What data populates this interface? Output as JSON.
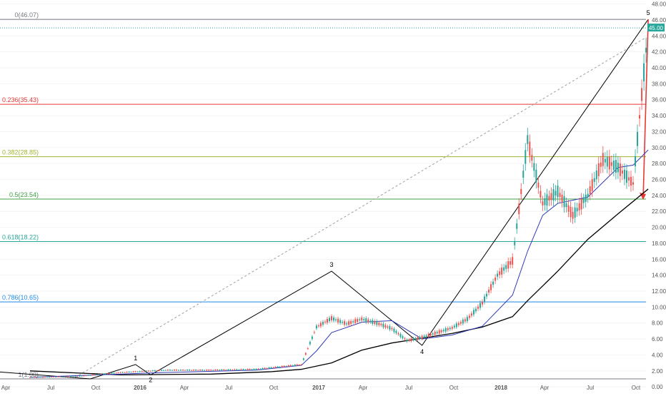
{
  "chart_data": {
    "type": "line",
    "x_tick_labels": [
      "Apr",
      "Jul",
      "Oct",
      "2016",
      "Apr",
      "Jul",
      "Oct",
      "2017",
      "Apr",
      "Jul",
      "Oct",
      "2018",
      "Apr",
      "Jul",
      "Oct"
    ],
    "y_ticks": [
      "0.00",
      "2.00",
      "4.00",
      "6.00",
      "8.00",
      "10.00",
      "12.00",
      "14.00",
      "16.00",
      "18.00",
      "20.00",
      "22.00",
      "24.00",
      "26.00",
      "28.00",
      "30.00",
      "32.00",
      "34.00",
      "36.00",
      "38.00",
      "40.00",
      "42.00",
      "44.00",
      "46.00",
      "48.00"
    ],
    "ylim": [
      -0.7,
      48.5
    ],
    "last_price": {
      "label": "45.00",
      "value": 45.0,
      "color": "#26a69a"
    },
    "fib_levels": [
      {
        "label": "0(46.07)",
        "value": 46.07,
        "color": "#787b86"
      },
      {
        "label": "0.236(35.43)",
        "value": 35.43,
        "color": "#e53935"
      },
      {
        "label": "0.382(28.85)",
        "value": 28.85,
        "color": "#9fb62e"
      },
      {
        "label": "0.5(23.54)",
        "value": 23.54,
        "color": "#43a047"
      },
      {
        "label": "0.618(18.22)",
        "value": 18.22,
        "color": "#26a69a"
      },
      {
        "label": "0.786(10.65)",
        "value": 10.65,
        "color": "#1e88e5"
      },
      {
        "label": "1(1.00)",
        "value": 1.0,
        "color": "#787b86"
      }
    ],
    "price_series": {
      "x": [
        "2015-04",
        "2015-07",
        "2015-10",
        "2016-01",
        "2016-04",
        "2016-07",
        "2016-10",
        "2016-11",
        "2016-12",
        "2017-01",
        "2017-02",
        "2017-03",
        "2017-04",
        "2017-05",
        "2017-06",
        "2017-07",
        "2017-08",
        "2017-09",
        "2017-10",
        "2017-11",
        "2017-12",
        "2018-01",
        "2018-02",
        "2018-03",
        "2018-04",
        "2018-05",
        "2018-06",
        "2018-07",
        "2018-08",
        "2018-09"
      ],
      "values": [
        1.2,
        1.3,
        1.8,
        2.1,
        2.1,
        2.2,
        2.8,
        7.5,
        8.6,
        7.9,
        8.5,
        8.0,
        7.3,
        5.8,
        6.2,
        6.8,
        7.4,
        8.5,
        10.5,
        14.0,
        15.8,
        31.0,
        23.0,
        24.5,
        21.5,
        24.0,
        28.5,
        27.5,
        25.5,
        45.0
      ]
    },
    "ma_blue": {
      "x": [
        "2015-04",
        "2016-01",
        "2016-07",
        "2016-10",
        "2016-11",
        "2016-12",
        "2017-02",
        "2017-04",
        "2017-06",
        "2017-08",
        "2017-10",
        "2017-12",
        "2018-01",
        "2018-02",
        "2018-03",
        "2018-05",
        "2018-07",
        "2018-08",
        "2018-09"
      ],
      "values": [
        1.2,
        1.8,
        2.1,
        2.7,
        4.5,
        6.8,
        8.1,
        8.3,
        6.0,
        6.5,
        7.6,
        11.5,
        17.0,
        21.5,
        23.0,
        23.8,
        27.5,
        27.8,
        29.7
      ]
    },
    "ma_black": {
      "x": [
        "2015-04",
        "2015-10",
        "2016-04",
        "2016-08",
        "2016-10",
        "2016-12",
        "2017-02",
        "2017-04",
        "2017-06",
        "2017-08",
        "2017-10",
        "2017-12",
        "2018-01",
        "2018-03",
        "2018-05",
        "2018-07",
        "2018-09"
      ],
      "values": [
        2.0,
        1.5,
        1.6,
        1.9,
        2.2,
        3.0,
        4.6,
        5.5,
        6.1,
        6.7,
        7.5,
        8.8,
        10.8,
        14.5,
        18.5,
        21.7,
        24.8
      ]
    },
    "wave_labels": [
      {
        "label": "1",
        "x": "2015-11",
        "y": 2.8
      },
      {
        "label": "2",
        "x": "2015-12",
        "y": 1.5
      },
      {
        "label": "3",
        "x": "2016-12",
        "y": 14.5
      },
      {
        "label": "4",
        "x": "2017-06",
        "y": 5.2
      },
      {
        "label": "5",
        "x": "2018-09",
        "y": 46.07
      }
    ]
  }
}
